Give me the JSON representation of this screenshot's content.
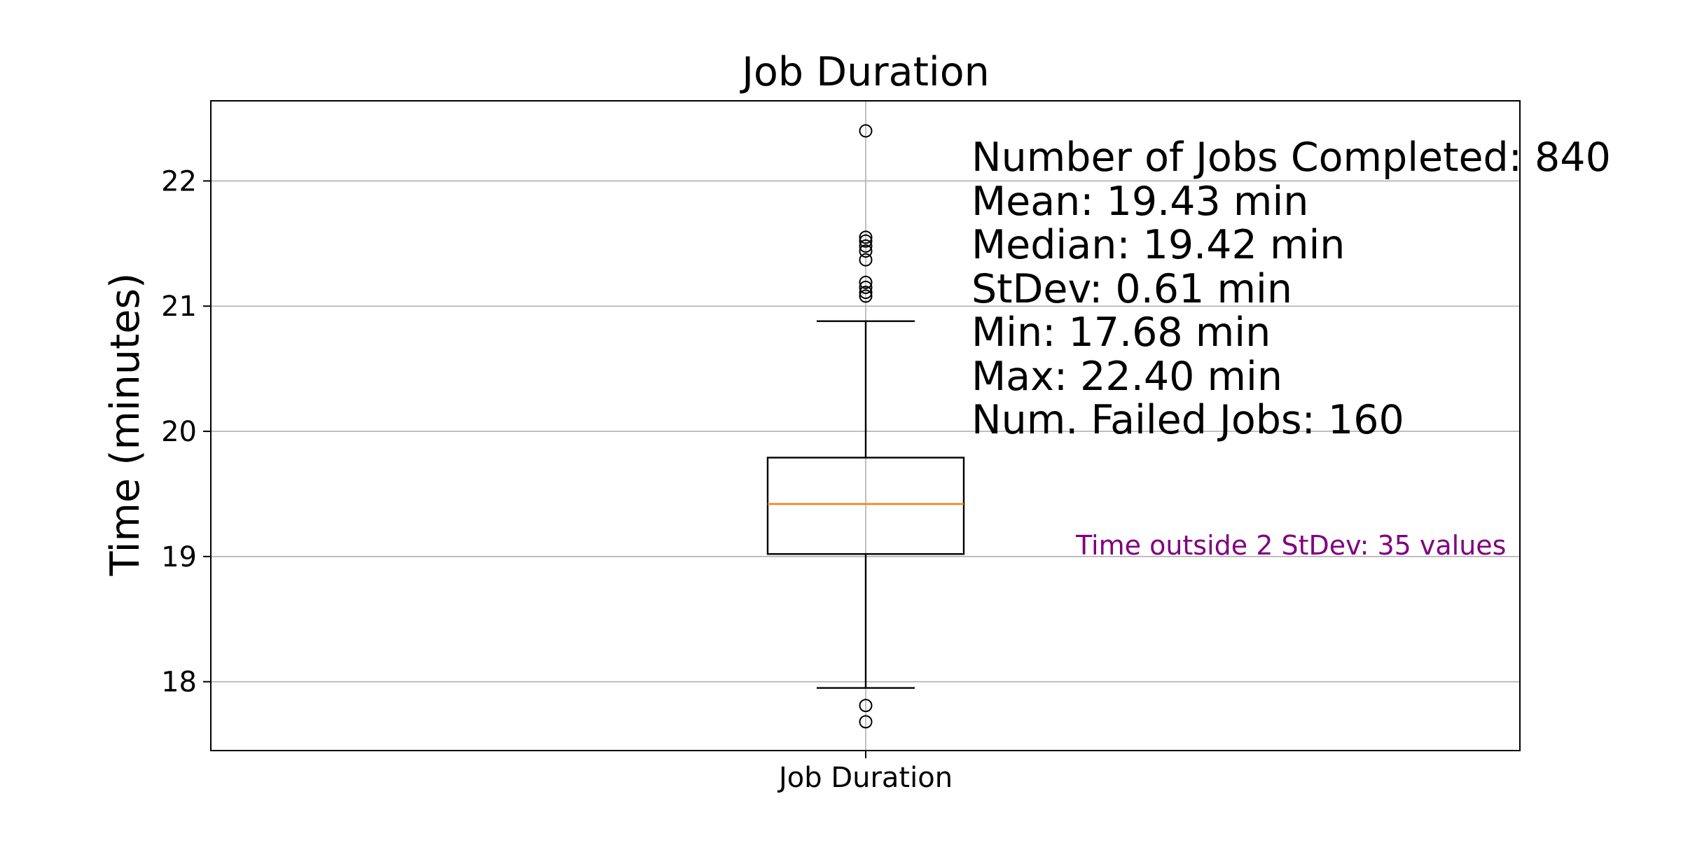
{
  "chart_data": {
    "type": "box",
    "title": "Job Duration",
    "xlabel": "",
    "ylabel": "Time (minutes)",
    "categories": [
      "Job Duration"
    ],
    "ylim": [
      17.45,
      22.64
    ],
    "yticks": [
      18,
      19,
      20,
      21,
      22
    ],
    "grid": true,
    "box": {
      "q1": 19.02,
      "median": 19.42,
      "q3": 19.79,
      "whisker_low": 17.95,
      "whisker_high": 20.88
    },
    "outliers": [
      22.4,
      21.55,
      21.52,
      21.48,
      21.44,
      21.37,
      21.19,
      21.15,
      21.11,
      21.08,
      17.81,
      17.68
    ],
    "stats_lines": [
      "Number of Jobs Completed: 840",
      "Mean: 19.43 min",
      "Median: 19.42 min",
      "StDev: 0.61 min",
      "Min: 17.68 min",
      "Max: 22.40 min",
      "Num. Failed Jobs: 160"
    ],
    "note": "Time outside 2 StDev: 35 values",
    "colors": {
      "median": "#ff7f0e",
      "note": "#800080",
      "grid": "#b0b0b0",
      "axis": "#000000"
    }
  }
}
